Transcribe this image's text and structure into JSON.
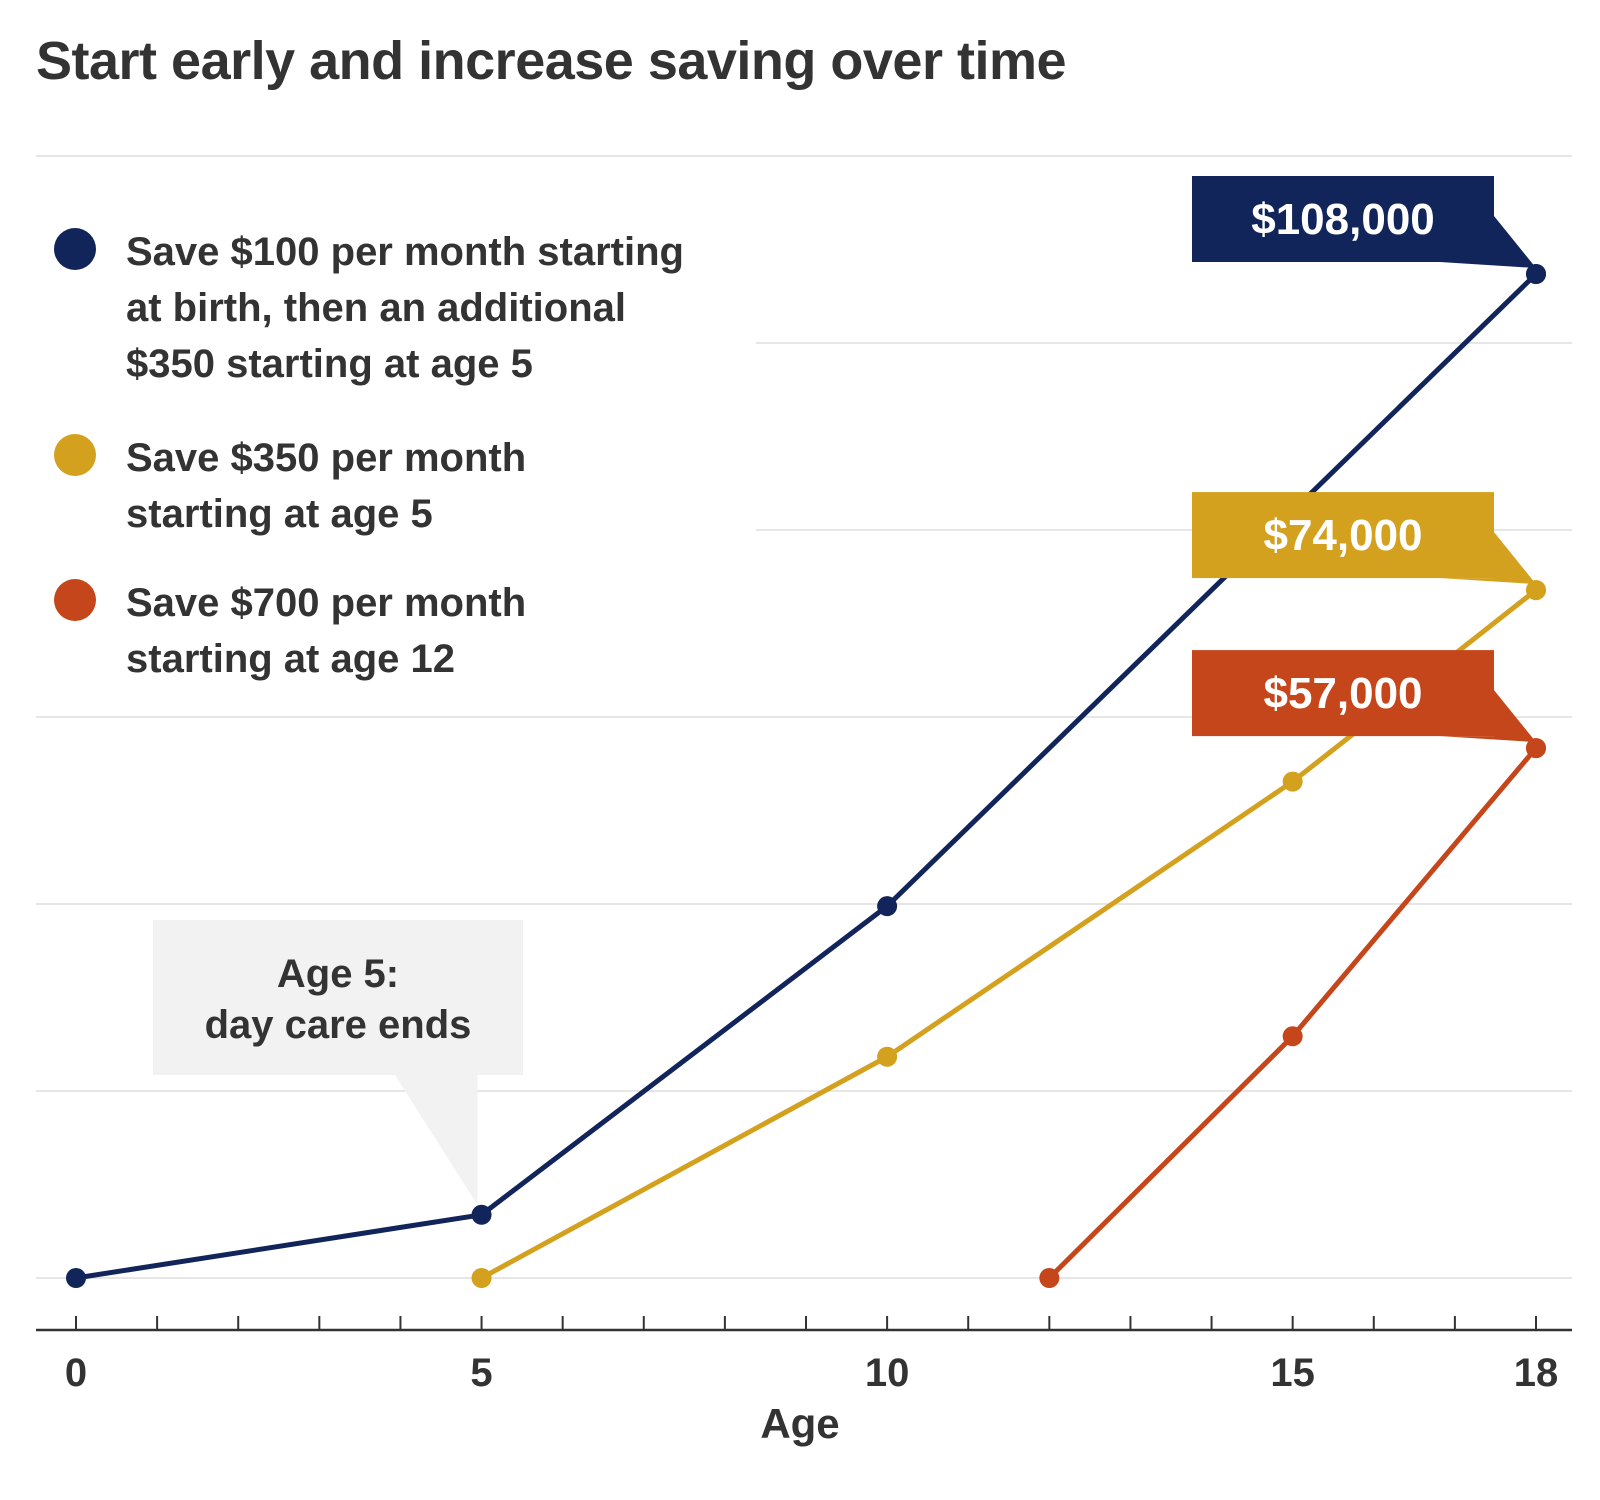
{
  "chart_data": {
    "type": "line",
    "title": "Start early and increase saving over time",
    "xlabel": "Age",
    "ylabel": "",
    "x_ticks": [
      0,
      5,
      10,
      15,
      18
    ],
    "xlim": [
      0,
      18
    ],
    "ylim": [
      0,
      120000
    ],
    "grid": true,
    "legend_position": "top-left",
    "series": [
      {
        "name": "Save $100 per month starting\nat birth, then an additional\n$350 starting at age 5",
        "color": "#12255a",
        "x": [
          0,
          5,
          10,
          18
        ],
        "y": [
          0,
          6800,
          40000,
          108000
        ],
        "end_label": "$108,000"
      },
      {
        "name": "Save $350 per month\nstarting at age 5",
        "color": "#d4a11f",
        "x": [
          5,
          10,
          15,
          18
        ],
        "y": [
          0,
          23800,
          53400,
          74000
        ],
        "end_label": "$74,000"
      },
      {
        "name": "Save $700 per month\nstarting at age 12",
        "color": "#c5461a",
        "x": [
          12,
          15,
          18
        ],
        "y": [
          0,
          26000,
          57000
        ],
        "end_label": "$57,000"
      }
    ],
    "annotation": {
      "text_line1": "Age 5:",
      "text_line2": "day care ends",
      "x": 5
    }
  }
}
